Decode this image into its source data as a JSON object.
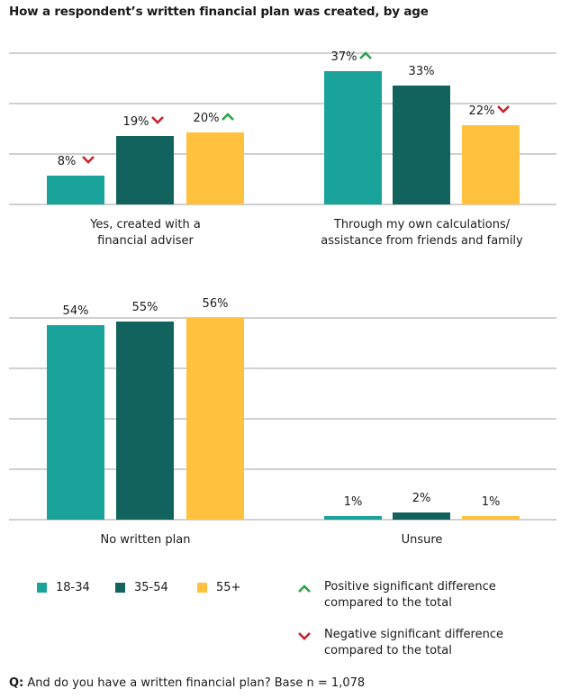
{
  "title": "How a respondent’s written financial plan was created, by age",
  "colors": {
    "18-34": "#1AA39A",
    "35-54": "#12635E",
    "55+": "#FFC13E",
    "positive": "#2BA34A",
    "negative": "#C8232E",
    "grid": "#B5B5B5"
  },
  "chart_data": [
    {
      "type": "bar",
      "title": "",
      "grid": true,
      "ylim": [
        0,
        42
      ],
      "groups": [
        {
          "category": "Yes, created with a financial adviser",
          "label_lines": [
            "Yes, created with a",
            "financial adviser"
          ],
          "values": [
            8,
            19,
            20
          ],
          "labels": [
            "8%",
            "19%",
            "20%"
          ],
          "significance": [
            "negative",
            "negative",
            "positive"
          ]
        },
        {
          "category": "Through my own calculations/ assistance from friends and family",
          "label_lines": [
            "Through my own calculations/",
            "assistance from friends and family"
          ],
          "values": [
            37,
            33,
            22
          ],
          "labels": [
            "37%",
            "33%",
            "22%"
          ],
          "significance": [
            "positive",
            "none",
            "negative"
          ]
        }
      ]
    },
    {
      "type": "bar",
      "title": "",
      "grid": true,
      "ylim": [
        0,
        56
      ],
      "groups": [
        {
          "category": "No written plan",
          "label_lines": [
            "No written plan"
          ],
          "values": [
            54,
            55,
            56
          ],
          "labels": [
            "54%",
            "55%",
            "56%"
          ],
          "significance": [
            "none",
            "none",
            "none"
          ]
        },
        {
          "category": "Unsure",
          "label_lines": [
            "Unsure"
          ],
          "values": [
            1,
            2,
            1
          ],
          "labels": [
            "1%",
            "2%",
            "1%"
          ],
          "significance": [
            "none",
            "none",
            "none"
          ]
        }
      ]
    }
  ],
  "legend": {
    "series": [
      "18-34",
      "35-54",
      "55+"
    ],
    "positive": "Positive significant difference compared to the total",
    "negative": "Negative significant difference compared to the total",
    "placement": "bottom"
  },
  "footnote": {
    "q": "Q:",
    "text": " And do you have a written financial plan? Base n = 1,078"
  }
}
